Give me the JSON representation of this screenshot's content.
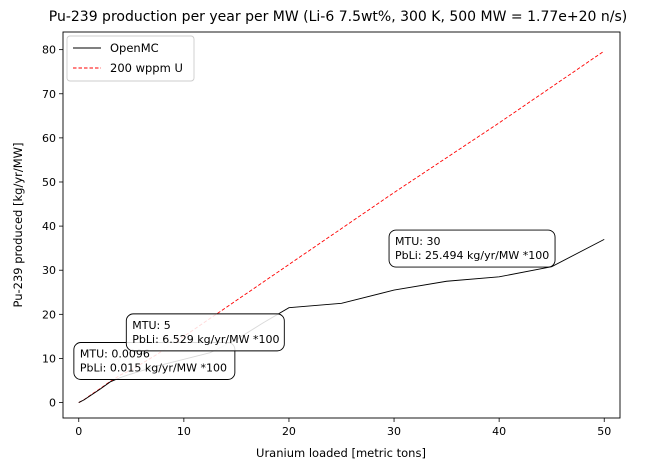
{
  "chart_data": {
    "type": "line",
    "title": "Pu-239 production per year per MW (Li-6 7.5wt%, 300 K, 500 MW = 1.77e+20 n/s)",
    "xlabel": "Uranium loaded [metric tons]",
    "ylabel": "Pu-239 produced [kg/yr/MW]",
    "xlim": [
      -1.5,
      51.5
    ],
    "ylim": [
      -3.5,
      84
    ],
    "xticks": [
      0,
      10,
      20,
      30,
      40,
      50
    ],
    "yticks": [
      0,
      10,
      20,
      30,
      40,
      50,
      60,
      70,
      80
    ],
    "grid": false,
    "legend_position": "top-left",
    "series": [
      {
        "name": "OpenMC",
        "color": "#000000",
        "style": "solid",
        "x": [
          0,
          0.5,
          1,
          2,
          3,
          4,
          5,
          7.5,
          10,
          12.5,
          15,
          17.5,
          20,
          25,
          30,
          35,
          40,
          45,
          50
        ],
        "y": [
          0,
          0.6,
          1.4,
          3.0,
          4.7,
          5.7,
          6.5,
          8.3,
          9.8,
          11.3,
          14.3,
          18.0,
          21.5,
          22.5,
          25.5,
          27.5,
          28.5,
          30.8,
          37.0
        ]
      },
      {
        "name": "200 wppm U",
        "color": "#ff0000",
        "style": "dashed",
        "x": [
          0,
          0.5,
          1,
          2,
          3,
          4,
          5,
          7.5,
          10,
          20,
          30,
          40,
          50
        ],
        "y": [
          0,
          0.65,
          1.5,
          3.1,
          4.8,
          6.3,
          7.4,
          11.0,
          15.0,
          31.3,
          47.6,
          63.4,
          79.7
        ]
      }
    ],
    "annotations": [
      {
        "x": 0.0096,
        "line1": "MTU: 0.0096",
        "line2": "PbLi: 0.015 kg/yr/MW *100"
      },
      {
        "x": 5,
        "line1": "MTU: 5",
        "line2": "PbLi: 6.529 kg/yr/MW *100"
      },
      {
        "x": 30,
        "line1": "MTU: 30",
        "line2": "PbLi: 25.494 kg/yr/MW *100"
      }
    ]
  }
}
